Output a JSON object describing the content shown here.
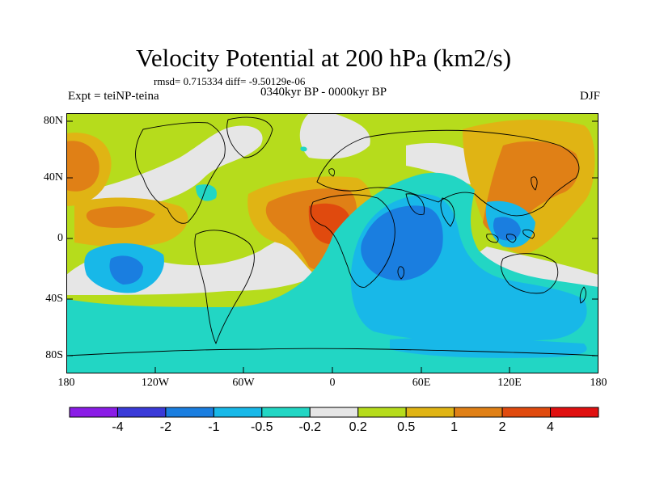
{
  "title": "Velocity Potential at 200 hPa (km2/s)",
  "stats": "rmsd= 0.715334 diff= -9.50129e-06",
  "left_label": "Expt = teiNP-teina",
  "center_label": "0340kyr BP - 0000kyr BP",
  "right_label": "DJF",
  "lat_ticks": [
    "80N",
    "40N",
    "0",
    "40S",
    "80S"
  ],
  "lon_ticks": [
    "180",
    "120W",
    "60W",
    "0",
    "60E",
    "120E",
    "180"
  ],
  "colorbar": {
    "labels": [
      "-4",
      "-2",
      "-1",
      "-0.5",
      "-0.2",
      "0.2",
      "0.5",
      "1",
      "2",
      "4"
    ],
    "colors": [
      "#8a1ce6",
      "#3a3ad8",
      "#1a7ee0",
      "#18b8e8",
      "#22d6c4",
      "#e6e6e6",
      "#b6dc1c",
      "#e0b414",
      "#e08016",
      "#e04a0e",
      "#e01010"
    ]
  }
}
